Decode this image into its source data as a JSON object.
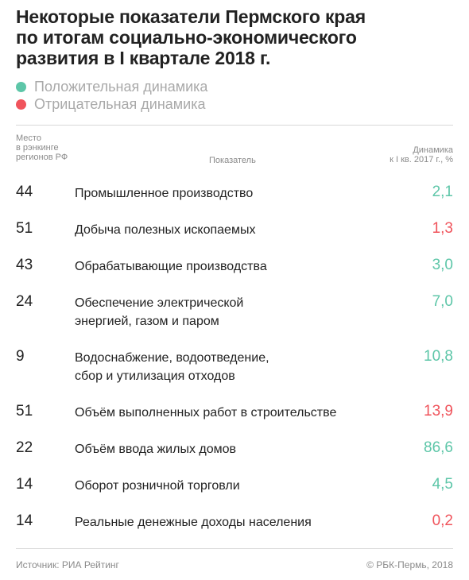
{
  "title": {
    "lines": [
      "Некоторые показатели Пермского края",
      "по итогам социально-экономического",
      "развития в I квартале 2018 г."
    ]
  },
  "legend": {
    "positive": {
      "label": "Положительная динамика",
      "color": "#5dc6a8"
    },
    "negative": {
      "label": "Отрицательная динамика",
      "color": "#f0545c"
    }
  },
  "columns": {
    "rank": [
      "Место",
      "в рэнкинге",
      "регионов РФ"
    ],
    "indicator": "Показатель",
    "dynamics": [
      "Динамика",
      "к I кв. 2017 г., %"
    ]
  },
  "chart_data": {
    "type": "table",
    "rows": [
      {
        "rank": "44",
        "name": [
          "Промышленное производство"
        ],
        "value": "2,1",
        "trend": "positive"
      },
      {
        "rank": "51",
        "name": [
          "Добыча полезных ископаемых"
        ],
        "value": "1,3",
        "trend": "negative"
      },
      {
        "rank": "43",
        "name": [
          "Обрабатывающие производства"
        ],
        "value": "3,0",
        "trend": "positive"
      },
      {
        "rank": "24",
        "name": [
          "Обеспечение электрической",
          "энергией, газом и паром"
        ],
        "value": "7,0",
        "trend": "positive"
      },
      {
        "rank": "9",
        "name": [
          "Водоснабжение, водоотведение,",
          "сбор и утилизация отходов"
        ],
        "value": "10,8",
        "trend": "positive"
      },
      {
        "rank": "51",
        "name": [
          "Объём выполненных работ в строительстве"
        ],
        "value": "13,9",
        "trend": "negative"
      },
      {
        "rank": "22",
        "name": [
          "Объём ввода жилых домов"
        ],
        "value": "86,6",
        "trend": "positive"
      },
      {
        "rank": "14",
        "name": [
          "Оборот розничной торговли"
        ],
        "value": "4,5",
        "trend": "positive"
      },
      {
        "rank": "14",
        "name": [
          "Реальные денежные доходы населения"
        ],
        "value": "0,2",
        "trend": "negative"
      }
    ]
  },
  "footer": {
    "source": "Источник: РИА Рейтинг",
    "copyright": "© РБК-Пермь, 2018"
  }
}
